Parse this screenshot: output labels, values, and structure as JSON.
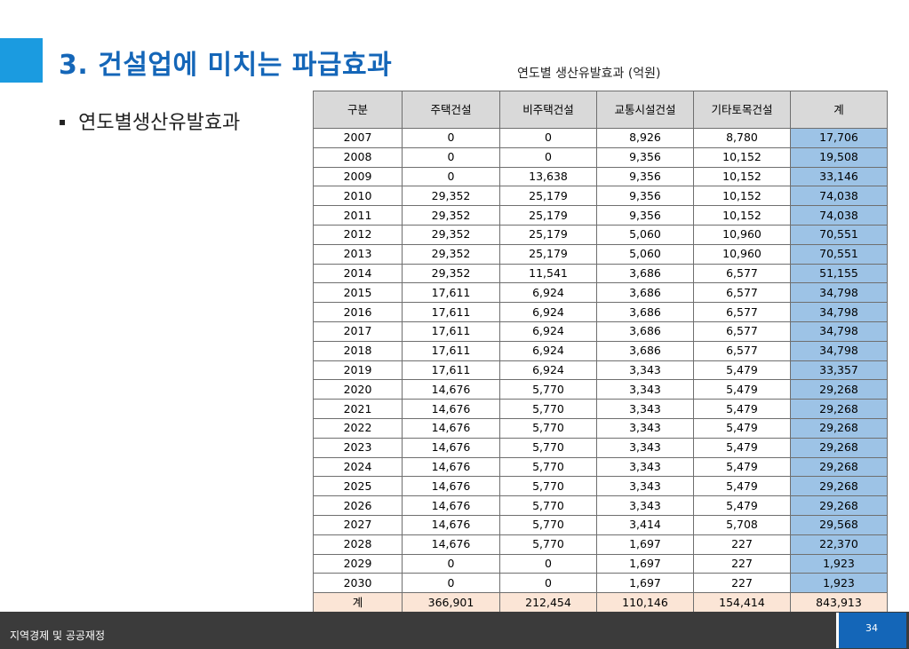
{
  "slide": {
    "title": "3. 건설업에 미치는 파급효과",
    "bullet": "연도별생산유발효과",
    "bullet_mark": "▪"
  },
  "table": {
    "caption": "연도별 생산유발효과 (억원)",
    "headers": [
      "구분",
      "주택건설",
      "비주택건설",
      "교통시설건설",
      "기타토목건설",
      "계"
    ],
    "rows": [
      [
        "2007",
        "0",
        "0",
        "8,926",
        "8,780",
        "17,706"
      ],
      [
        "2008",
        "0",
        "0",
        "9,356",
        "10,152",
        "19,508"
      ],
      [
        "2009",
        "0",
        "13,638",
        "9,356",
        "10,152",
        "33,146"
      ],
      [
        "2010",
        "29,352",
        "25,179",
        "9,356",
        "10,152",
        "74,038"
      ],
      [
        "2011",
        "29,352",
        "25,179",
        "9,356",
        "10,152",
        "74,038"
      ],
      [
        "2012",
        "29,352",
        "25,179",
        "5,060",
        "10,960",
        "70,551"
      ],
      [
        "2013",
        "29,352",
        "25,179",
        "5,060",
        "10,960",
        "70,551"
      ],
      [
        "2014",
        "29,352",
        "11,541",
        "3,686",
        "6,577",
        "51,155"
      ],
      [
        "2015",
        "17,611",
        "6,924",
        "3,686",
        "6,577",
        "34,798"
      ],
      [
        "2016",
        "17,611",
        "6,924",
        "3,686",
        "6,577",
        "34,798"
      ],
      [
        "2017",
        "17,611",
        "6,924",
        "3,686",
        "6,577",
        "34,798"
      ],
      [
        "2018",
        "17,611",
        "6,924",
        "3,686",
        "6,577",
        "34,798"
      ],
      [
        "2019",
        "17,611",
        "6,924",
        "3,343",
        "5,479",
        "33,357"
      ],
      [
        "2020",
        "14,676",
        "5,770",
        "3,343",
        "5,479",
        "29,268"
      ],
      [
        "2021",
        "14,676",
        "5,770",
        "3,343",
        "5,479",
        "29,268"
      ],
      [
        "2022",
        "14,676",
        "5,770",
        "3,343",
        "5,479",
        "29,268"
      ],
      [
        "2023",
        "14,676",
        "5,770",
        "3,343",
        "5,479",
        "29,268"
      ],
      [
        "2024",
        "14,676",
        "5,770",
        "3,343",
        "5,479",
        "29,268"
      ],
      [
        "2025",
        "14,676",
        "5,770",
        "3,343",
        "5,479",
        "29,268"
      ],
      [
        "2026",
        "14,676",
        "5,770",
        "3,343",
        "5,479",
        "29,268"
      ],
      [
        "2027",
        "14,676",
        "5,770",
        "3,414",
        "5,708",
        "29,568"
      ],
      [
        "2028",
        "14,676",
        "5,770",
        "1,697",
        "227",
        "22,370"
      ],
      [
        "2029",
        "0",
        "0",
        "1,697",
        "227",
        "1,923"
      ],
      [
        "2030",
        "0",
        "0",
        "1,697",
        "227",
        "1,923"
      ]
    ],
    "total": [
      "계",
      "366,901",
      "212,454",
      "110,146",
      "154,414",
      "843,913"
    ]
  },
  "footer": {
    "text": "지역경제 및 공공재정",
    "page": "34"
  },
  "colors": {
    "accent": "#1b9be0",
    "title": "#1466b8",
    "header_bg": "#d9d9d9",
    "total_col_bg": "#9dc3e6",
    "sum_row_bg": "#fbe5d6",
    "footer_bg": "#3b3b3b"
  }
}
